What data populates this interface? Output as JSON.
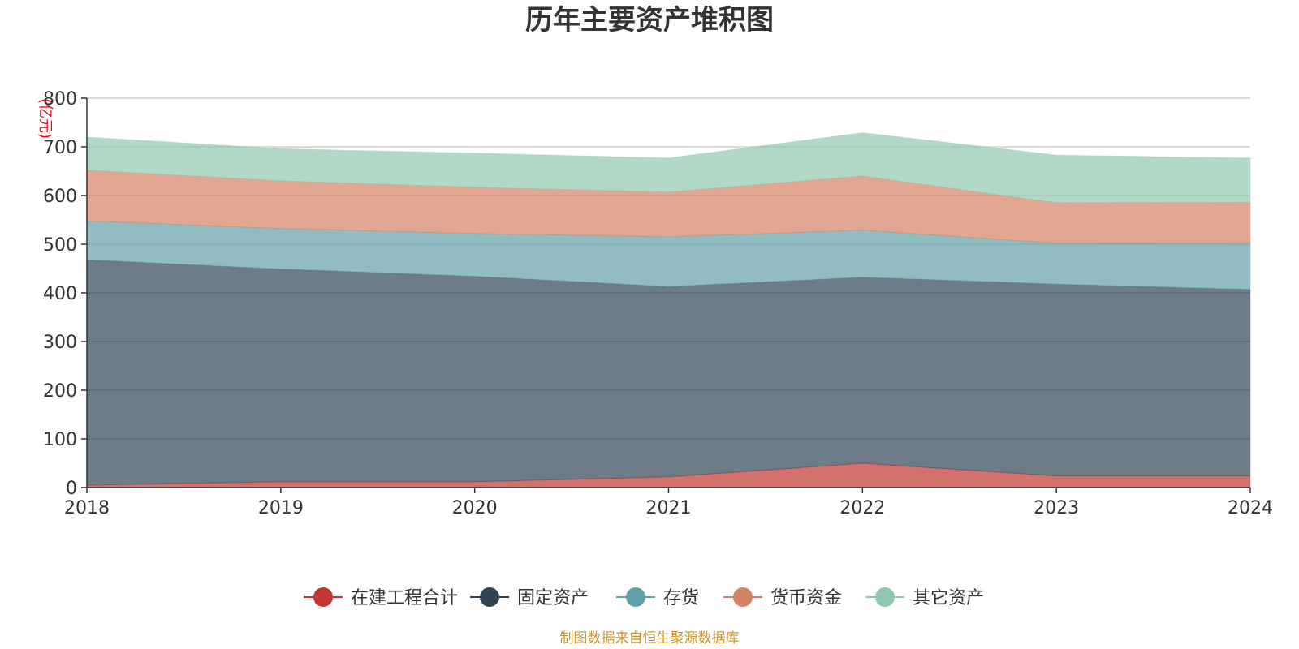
{
  "chart_data": {
    "type": "area",
    "stacked": true,
    "title": "历年主要资产堆积图",
    "unit_label": "(亿元)",
    "source": "制图数据来自恒生聚源数据库",
    "x": [
      "2018",
      "2019",
      "2020",
      "2021",
      "2022",
      "2023",
      "2024"
    ],
    "ylim": [
      0,
      800
    ],
    "yticks": [
      "0",
      "100",
      "200",
      "300",
      "400",
      "500",
      "600",
      "700",
      "800"
    ],
    "grid": true,
    "legend_position": "bottom-center",
    "series": [
      {
        "name": "在建工程合计",
        "color": "#c23531",
        "values": [
          5,
          12,
          12,
          22,
          50,
          24,
          24
        ]
      },
      {
        "name": "固定资产",
        "color": "#2f4554",
        "values": [
          463,
          437,
          422,
          391,
          382,
          394,
          383
        ]
      },
      {
        "name": "存货",
        "color": "#61a0a8",
        "values": [
          80,
          83,
          88,
          102,
          97,
          84,
          96
        ]
      },
      {
        "name": "货币资金",
        "color": "#d48265",
        "values": [
          104,
          98,
          95,
          92,
          111,
          83,
          83
        ]
      },
      {
        "name": "其它资产",
        "color": "#91c7ae",
        "values": [
          68,
          66,
          70,
          70,
          89,
          98,
          91
        ]
      }
    ]
  }
}
